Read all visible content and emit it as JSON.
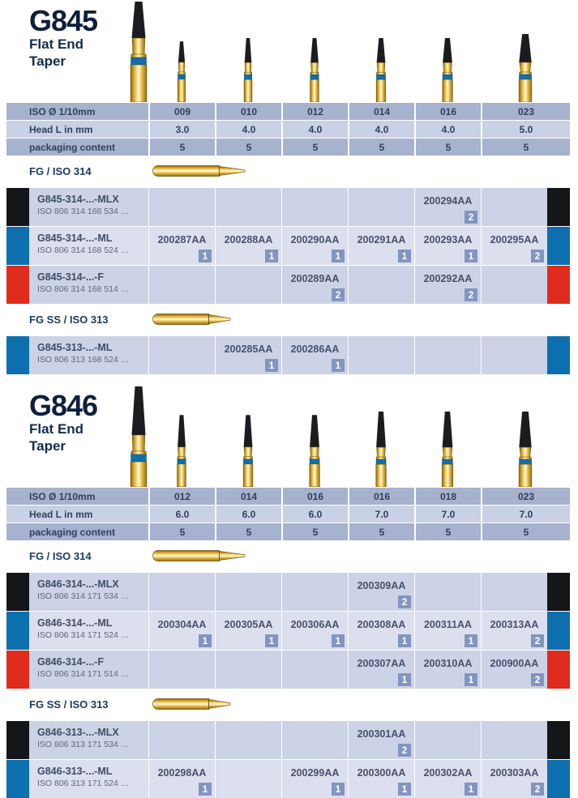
{
  "colors": {
    "title_navy": "#0d1f3c",
    "strip_black": "#14161a",
    "strip_blue": "#0e6fae",
    "strip_red": "#df2c1d",
    "badge_blue": "#8295c1",
    "band_blue": "#0f6fad",
    "gold": "#e3b64a",
    "spec_row_dark": "#a6b2ce",
    "spec_row_light": "#c9d1e4",
    "order_row_dark": "#ccd3e6",
    "order_row_light": "#dcdfee"
  },
  "products": [
    {
      "code": "G845",
      "subtitle_line1": "Flat End",
      "subtitle_line2": "Taper",
      "spec": {
        "rows": [
          {
            "label": "ISO Ø 1/10mm",
            "values": [
              "009",
              "010",
              "012",
              "014",
              "016",
              "023"
            ]
          },
          {
            "label": "Head L in mm",
            "values": [
              "3.0",
              "4.0",
              "4.0",
              "4.0",
              "4.0",
              "5.0"
            ]
          },
          {
            "label": "packaging content",
            "values": [
              "5",
              "5",
              "5",
              "5",
              "5",
              "5"
            ]
          }
        ]
      },
      "groups": [
        {
          "label": "FG / ISO 314",
          "rows": [
            {
              "name": "G845-314-...-MLX",
              "iso": "ISO 806 314 168 534 …",
              "color": "black",
              "cells": [
                null,
                null,
                null,
                null,
                {
                  "code": "200294AA",
                  "qty": "2"
                },
                null
              ]
            },
            {
              "name": "G845-314-...-ML",
              "iso": "ISO 806 314 168 524 …",
              "color": "blue",
              "cells": [
                {
                  "code": "200287AA",
                  "qty": "1"
                },
                {
                  "code": "200288AA",
                  "qty": "1"
                },
                {
                  "code": "200290AA",
                  "qty": "1"
                },
                {
                  "code": "200291AA",
                  "qty": "1"
                },
                {
                  "code": "200293AA",
                  "qty": "1"
                },
                {
                  "code": "200295AA",
                  "qty": "2"
                }
              ]
            },
            {
              "name": "G845-314-...-F",
              "iso": "ISO 806 314 168 514 …",
              "color": "red",
              "cells": [
                null,
                null,
                {
                  "code": "200289AA",
                  "qty": "2"
                },
                null,
                {
                  "code": "200292AA",
                  "qty": "2"
                },
                null
              ]
            }
          ]
        },
        {
          "label": "FG SS / ISO 313",
          "rows": [
            {
              "name": "G845-313-...-ML",
              "iso": "ISO 806 313 168 524 …",
              "color": "blue",
              "cells": [
                null,
                {
                  "code": "200285AA",
                  "qty": "1"
                },
                {
                  "code": "200286AA",
                  "qty": "1"
                },
                null,
                null,
                null
              ]
            }
          ]
        }
      ]
    },
    {
      "code": "G846",
      "subtitle_line1": "Flat End",
      "subtitle_line2": "Taper",
      "spec": {
        "rows": [
          {
            "label": "ISO Ø 1/10mm",
            "values": [
              "012",
              "014",
              "016",
              "016",
              "018",
              "023"
            ]
          },
          {
            "label": "Head L in mm",
            "values": [
              "6.0",
              "6.0",
              "6.0",
              "7.0",
              "7.0",
              "7.0"
            ]
          },
          {
            "label": "packaging content",
            "values": [
              "5",
              "5",
              "5",
              "5",
              "5",
              "5"
            ]
          }
        ]
      },
      "groups": [
        {
          "label": "FG / ISO 314",
          "rows": [
            {
              "name": "G846-314-...-MLX",
              "iso": "ISO 806 314 171 534 …",
              "color": "black",
              "cells": [
                null,
                null,
                null,
                {
                  "code": "200309AA",
                  "qty": "2"
                },
                null,
                null
              ]
            },
            {
              "name": "G846-314-...-ML",
              "iso": "ISO 806 314 171 524 …",
              "color": "blue",
              "cells": [
                {
                  "code": "200304AA",
                  "qty": "1"
                },
                {
                  "code": "200305AA",
                  "qty": "1"
                },
                {
                  "code": "200306AA",
                  "qty": "1"
                },
                {
                  "code": "200308AA",
                  "qty": "1"
                },
                {
                  "code": "200311AA",
                  "qty": "1"
                },
                {
                  "code": "200313AA",
                  "qty": "2"
                }
              ]
            },
            {
              "name": "G846-314-...-F",
              "iso": "ISO 806 314 171 514 …",
              "color": "red",
              "cells": [
                null,
                null,
                null,
                {
                  "code": "200307AA",
                  "qty": "1"
                },
                {
                  "code": "200310AA",
                  "qty": "1"
                },
                {
                  "code": "200900AA",
                  "qty": "2"
                }
              ]
            }
          ]
        },
        {
          "label": "FG SS / ISO 313",
          "rows": [
            {
              "name": "G846-313-...-MLX",
              "iso": "ISO 806 313 171 534 …",
              "color": "black",
              "cells": [
                null,
                null,
                null,
                {
                  "code": "200301AA",
                  "qty": "2"
                },
                null,
                null
              ]
            },
            {
              "name": "G846-313-...-ML",
              "iso": "ISO 806 313 171 524 …",
              "color": "blue",
              "cells": [
                {
                  "code": "200298AA",
                  "qty": "1"
                },
                null,
                {
                  "code": "200299AA",
                  "qty": "1"
                },
                {
                  "code": "200300AA",
                  "qty": "1"
                },
                {
                  "code": "200302AA",
                  "qty": "1"
                },
                {
                  "code": "200303AA",
                  "qty": "2"
                }
              ]
            }
          ]
        }
      ]
    }
  ]
}
